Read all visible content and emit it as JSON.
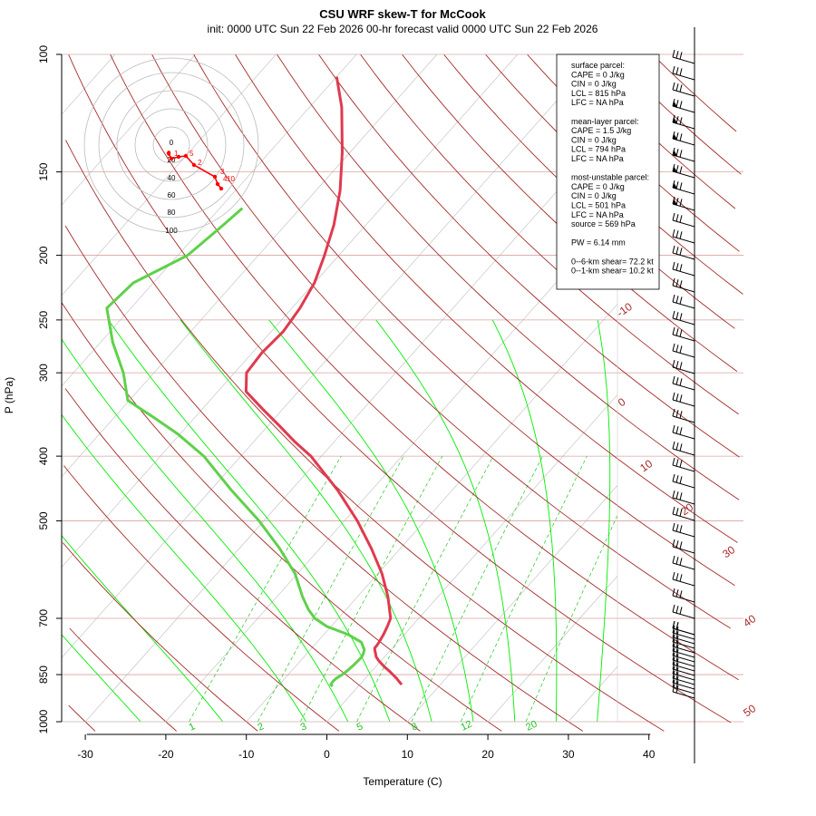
{
  "chart_data": {
    "type": "line",
    "title": "CSU WRF skew-T for McCook",
    "subtitle": "init: 0000 UTC Sun 22 Feb 2026     00-hr forecast valid 0000 UTC Sun 22 Feb 2026",
    "xlabel": "Temperature (C)",
    "ylabel": "P (hPa)",
    "x_ticks": [
      -30,
      -20,
      -10,
      0,
      10,
      20,
      30,
      40
    ],
    "xlim": [
      -33,
      43
    ],
    "y_ticks": [
      100,
      150,
      200,
      250,
      300,
      400,
      500,
      700,
      850,
      1000
    ],
    "ylim": [
      1050,
      100
    ],
    "isobars": [
      100,
      150,
      200,
      250,
      300,
      400,
      500,
      700,
      850,
      1000
    ],
    "isotherm_labels": [
      "-10",
      "0",
      "10",
      "20",
      "30",
      "40",
      "50"
    ],
    "mixing_ratio_labels": [
      "1",
      "2",
      "3",
      "5",
      "8",
      "12",
      "20"
    ],
    "series": [
      {
        "name": "Temperature",
        "color": "#e03a4e",
        "p": [
          880,
          870,
          860,
          850,
          840,
          830,
          820,
          810,
          800,
          790,
          780,
          775,
          770,
          760,
          740,
          720,
          700,
          650,
          600,
          550,
          500,
          450,
          400,
          380,
          360,
          340,
          320,
          300,
          280,
          260,
          240,
          220,
          200,
          180,
          160,
          140,
          120,
          108
        ],
        "t": [
          5.2,
          4.5,
          3.8,
          3.0,
          2.2,
          1.3,
          0.5,
          -0.3,
          -1.0,
          -1.5,
          -2.0,
          -2.2,
          -2.2,
          -2.3,
          -2.6,
          -3.0,
          -3.5,
          -6.2,
          -9.5,
          -13.6,
          -18.4,
          -24.2,
          -31.3,
          -35.0,
          -38.6,
          -42.5,
          -46.5,
          -48.5,
          -48.8,
          -48.5,
          -49.0,
          -50.0,
          -51.8,
          -54.0,
          -57.0,
          -61.0,
          -66.0,
          -70.0
        ]
      },
      {
        "name": "Dewpoint",
        "color": "#5fd14a",
        "p": [
          885,
          880,
          870,
          860,
          850,
          840,
          820,
          800,
          790,
          780,
          760,
          740,
          720,
          700,
          680,
          650,
          600,
          550,
          500,
          450,
          400,
          370,
          350,
          330,
          300,
          270,
          240,
          220,
          200,
          180,
          170
        ],
        "td": [
          -3.2,
          -3.6,
          -3.7,
          -3.6,
          -3.3,
          -3.1,
          -2.9,
          -2.8,
          -3.0,
          -3.3,
          -4.5,
          -7.0,
          -10.5,
          -12.9,
          -14.6,
          -16.8,
          -20.3,
          -25.0,
          -30.6,
          -37.4,
          -44.6,
          -50.4,
          -55.1,
          -60.2,
          -63.8,
          -68.5,
          -73.0,
          -72.5,
          -68.8,
          -67.7,
          -67.2
        ]
      }
    ],
    "hodograph": {
      "ring_labels": [
        "0",
        "20",
        "40",
        "60",
        "80",
        "100"
      ],
      "point_labels": [
        "0",
        "1",
        "5",
        "2",
        "3",
        "4",
        "10"
      ]
    },
    "info_panel": [
      "surface parcel:",
      "CAPE = 0 J/kg",
      "CIN = 0 J/kg",
      "LCL = 815 hPa",
      "LFC = NA hPa",
      "",
      "mean-layer parcel:",
      "CAPE = 1.5 J/kg",
      "CIN = 0 J/kg",
      "LCL = 794 hPa",
      "LFC = NA hPa",
      "",
      "most-unstable parcel:",
      "CAPE = 0 J/kg",
      "CIN = 0 J/kg",
      "LCL = 501 hPa",
      "LFC = NA hPa",
      "source = 569 hPa",
      "",
      "PW =  6.14 mm",
      "",
      "0--6-km shear= 72.2 kt",
      "0--1-km shear= 10.2 kt"
    ],
    "colors": {
      "isobar": "#d9a3a3",
      "isotherm": "#bdbdbd",
      "dry_adiabat": "#a52a2a",
      "moist_adiabat": "#00ee00",
      "mixing_ratio": "#22c422",
      "hodograph": "#ff0000"
    }
  }
}
